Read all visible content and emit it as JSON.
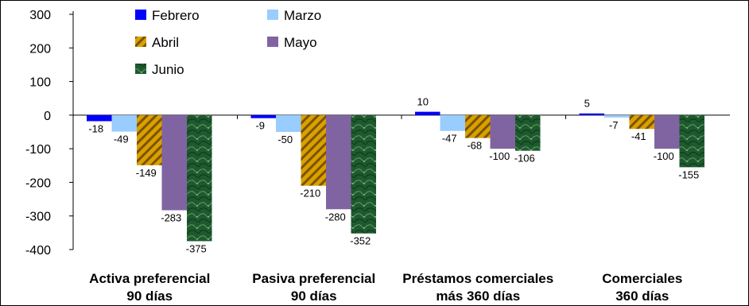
{
  "chart_data": {
    "type": "bar",
    "categories": [
      [
        "Activa preferencial",
        "90 días"
      ],
      [
        "Pasiva preferencial",
        "90 días"
      ],
      [
        "Préstamos comerciales",
        "más 360 días"
      ],
      [
        "Comerciales",
        "360 días"
      ]
    ],
    "series": [
      {
        "name": "Febrero",
        "color": "#0000ff",
        "pattern": "solid",
        "values": [
          -18,
          -9,
          10,
          5
        ]
      },
      {
        "name": "Marzo",
        "color": "#99ccff",
        "pattern": "solid",
        "values": [
          -49,
          -50,
          -47,
          -7
        ]
      },
      {
        "name": "Abril",
        "color": "#d9a000",
        "pattern": "diagonal-stripes",
        "values": [
          -149,
          -210,
          -68,
          -41
        ]
      },
      {
        "name": "Mayo",
        "color": "#8064a2",
        "pattern": "solid",
        "values": [
          -283,
          -280,
          -100,
          -100
        ]
      },
      {
        "name": "Junio",
        "color": "#1e5a2e",
        "pattern": "marble",
        "values": [
          -375,
          -352,
          -106,
          -155
        ]
      }
    ],
    "ylim": [
      -400,
      300
    ],
    "yticks": [
      300,
      200,
      100,
      0,
      -100,
      -200,
      -300,
      -400
    ],
    "legend_position": "top-left",
    "grid": false,
    "title": "",
    "xlabel": "",
    "ylabel": ""
  }
}
